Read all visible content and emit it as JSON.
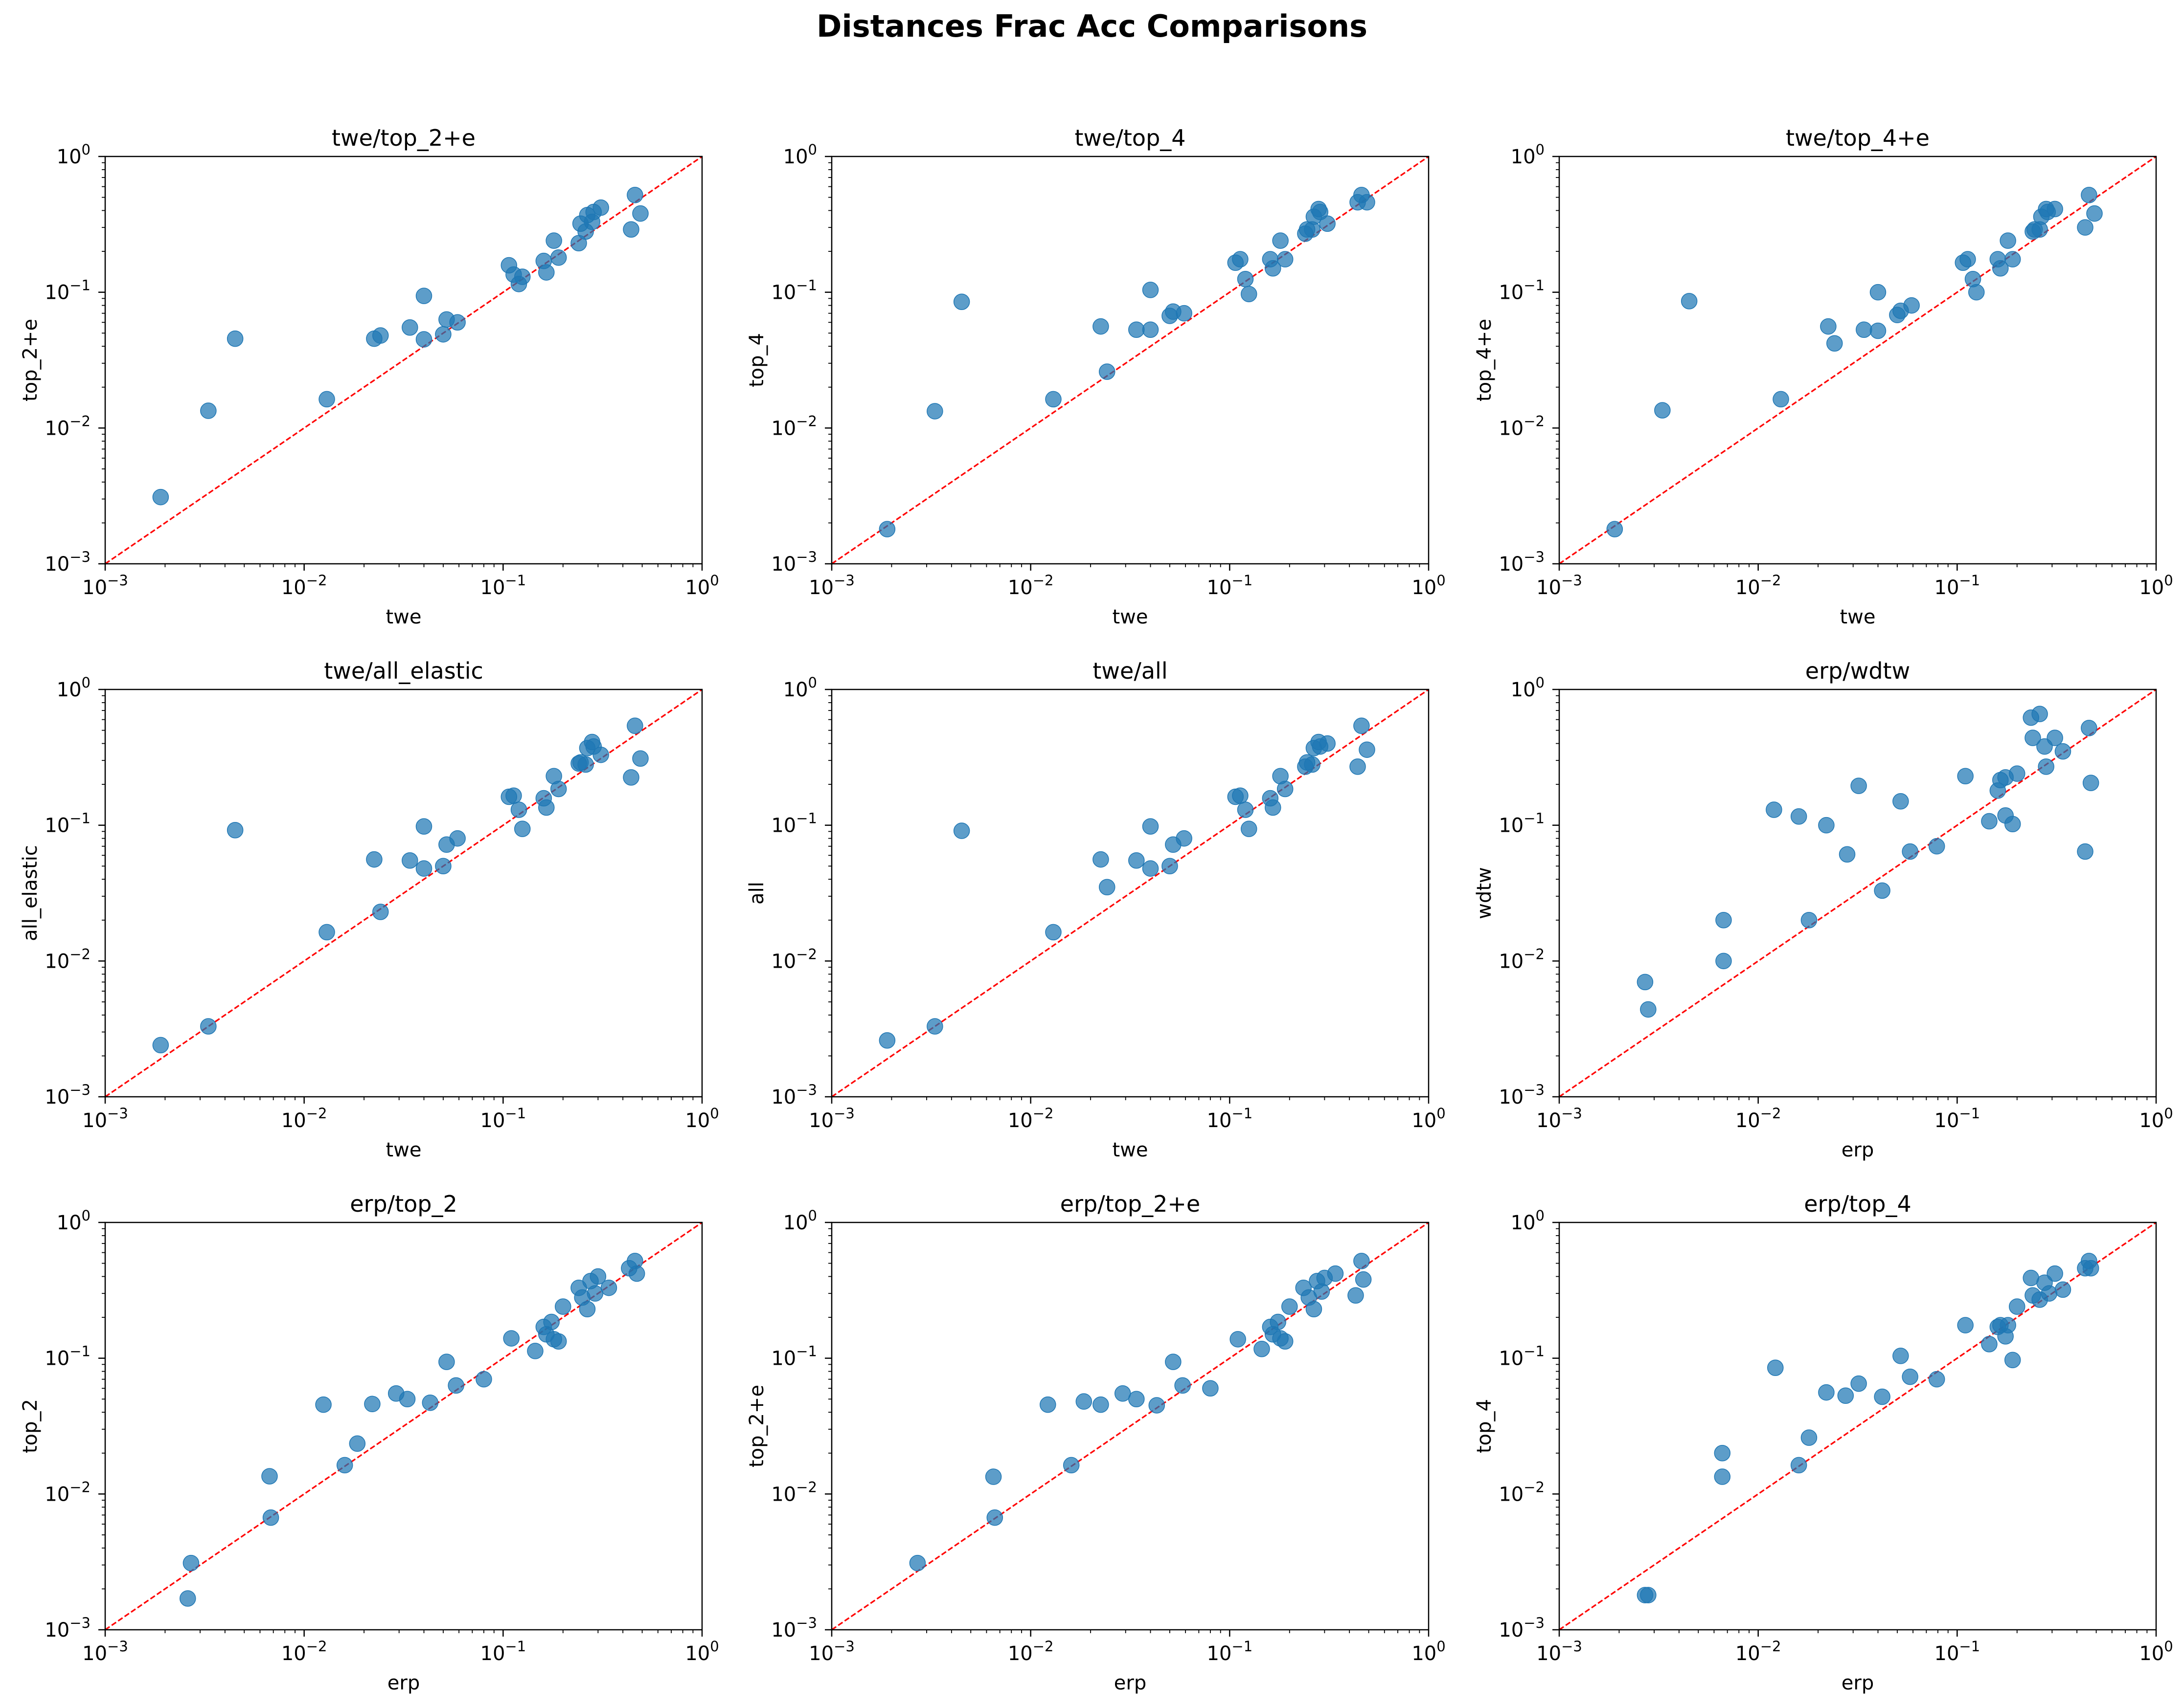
{
  "figure_title": "Distances Frac Acc Comparisons",
  "colors": {
    "point": "#1f77b4",
    "diagonal": "#ff0000",
    "axis": "#000000"
  },
  "tick_labels": [
    "10",
    "10",
    "10",
    "10"
  ],
  "tick_exponents": [
    "−3",
    "−2",
    "−1",
    "0"
  ],
  "chart_data": [
    {
      "type": "scatter",
      "title": "twe/top_2+e",
      "xlabel": "twe",
      "ylabel": "top_2+e",
      "xscale": "log",
      "yscale": "log",
      "xlim": [
        0.001,
        1
      ],
      "ylim": [
        0.001,
        1
      ],
      "reference_line": "y = x",
      "points": [
        [
          0.0019,
          0.0031
        ],
        [
          0.0033,
          0.0134
        ],
        [
          0.0045,
          0.0455
        ],
        [
          0.013,
          0.0163
        ],
        [
          0.0225,
          0.0455
        ],
        [
          0.0242,
          0.048
        ],
        [
          0.034,
          0.055
        ],
        [
          0.04,
          0.045
        ],
        [
          0.04,
          0.094
        ],
        [
          0.05,
          0.049
        ],
        [
          0.052,
          0.063
        ],
        [
          0.059,
          0.06
        ],
        [
          0.107,
          0.158
        ],
        [
          0.113,
          0.135
        ],
        [
          0.12,
          0.115
        ],
        [
          0.125,
          0.13
        ],
        [
          0.16,
          0.17
        ],
        [
          0.165,
          0.14
        ],
        [
          0.18,
          0.24
        ],
        [
          0.19,
          0.18
        ],
        [
          0.24,
          0.23
        ],
        [
          0.245,
          0.32
        ],
        [
          0.26,
          0.28
        ],
        [
          0.265,
          0.37
        ],
        [
          0.28,
          0.33
        ],
        [
          0.285,
          0.39
        ],
        [
          0.31,
          0.42
        ],
        [
          0.44,
          0.29
        ],
        [
          0.46,
          0.52
        ],
        [
          0.49,
          0.38
        ]
      ]
    },
    {
      "type": "scatter",
      "title": "twe/top_4",
      "xlabel": "twe",
      "ylabel": "top_4",
      "xscale": "log",
      "yscale": "log",
      "xlim": [
        0.001,
        1
      ],
      "ylim": [
        0.001,
        1
      ],
      "reference_line": "y = x",
      "points": [
        [
          0.0019,
          0.0018
        ],
        [
          0.0033,
          0.0133
        ],
        [
          0.0045,
          0.085
        ],
        [
          0.013,
          0.0163
        ],
        [
          0.0225,
          0.056
        ],
        [
          0.0242,
          0.026
        ],
        [
          0.034,
          0.053
        ],
        [
          0.04,
          0.104
        ],
        [
          0.04,
          0.053
        ],
        [
          0.05,
          0.067
        ],
        [
          0.052,
          0.072
        ],
        [
          0.059,
          0.07
        ],
        [
          0.107,
          0.165
        ],
        [
          0.113,
          0.175
        ],
        [
          0.12,
          0.125
        ],
        [
          0.125,
          0.097
        ],
        [
          0.16,
          0.175
        ],
        [
          0.165,
          0.15
        ],
        [
          0.18,
          0.24
        ],
        [
          0.19,
          0.175
        ],
        [
          0.24,
          0.27
        ],
        [
          0.245,
          0.29
        ],
        [
          0.26,
          0.29
        ],
        [
          0.265,
          0.36
        ],
        [
          0.28,
          0.41
        ],
        [
          0.285,
          0.39
        ],
        [
          0.31,
          0.32
        ],
        [
          0.44,
          0.46
        ],
        [
          0.46,
          0.52
        ],
        [
          0.49,
          0.46
        ]
      ]
    },
    {
      "type": "scatter",
      "title": "twe/top_4+e",
      "xlabel": "twe",
      "ylabel": "top_4+e",
      "xscale": "log",
      "yscale": "log",
      "xlim": [
        0.001,
        1
      ],
      "ylim": [
        0.001,
        1
      ],
      "reference_line": "y = x",
      "points": [
        [
          0.0019,
          0.0018
        ],
        [
          0.0033,
          0.0135
        ],
        [
          0.0045,
          0.086
        ],
        [
          0.013,
          0.0163
        ],
        [
          0.0225,
          0.056
        ],
        [
          0.0242,
          0.042
        ],
        [
          0.034,
          0.053
        ],
        [
          0.04,
          0.1
        ],
        [
          0.04,
          0.052
        ],
        [
          0.05,
          0.068
        ],
        [
          0.052,
          0.073
        ],
        [
          0.059,
          0.08
        ],
        [
          0.107,
          0.165
        ],
        [
          0.113,
          0.175
        ],
        [
          0.12,
          0.125
        ],
        [
          0.125,
          0.1
        ],
        [
          0.16,
          0.175
        ],
        [
          0.165,
          0.15
        ],
        [
          0.18,
          0.24
        ],
        [
          0.19,
          0.175
        ],
        [
          0.24,
          0.28
        ],
        [
          0.245,
          0.29
        ],
        [
          0.26,
          0.29
        ],
        [
          0.265,
          0.36
        ],
        [
          0.28,
          0.41
        ],
        [
          0.285,
          0.39
        ],
        [
          0.31,
          0.41
        ],
        [
          0.44,
          0.3
        ],
        [
          0.46,
          0.52
        ],
        [
          0.49,
          0.38
        ]
      ]
    },
    {
      "type": "scatter",
      "title": "twe/all_elastic",
      "xlabel": "twe",
      "ylabel": "all_elastic",
      "xscale": "log",
      "yscale": "log",
      "xlim": [
        0.001,
        1
      ],
      "ylim": [
        0.001,
        1
      ],
      "reference_line": "y = x",
      "points": [
        [
          0.0019,
          0.0024
        ],
        [
          0.0033,
          0.0033
        ],
        [
          0.0045,
          0.092
        ],
        [
          0.013,
          0.0163
        ],
        [
          0.0225,
          0.056
        ],
        [
          0.0242,
          0.023
        ],
        [
          0.034,
          0.055
        ],
        [
          0.04,
          0.098
        ],
        [
          0.04,
          0.048
        ],
        [
          0.05,
          0.05
        ],
        [
          0.052,
          0.072
        ],
        [
          0.059,
          0.08
        ],
        [
          0.107,
          0.162
        ],
        [
          0.113,
          0.165
        ],
        [
          0.12,
          0.13
        ],
        [
          0.125,
          0.094
        ],
        [
          0.16,
          0.158
        ],
        [
          0.165,
          0.135
        ],
        [
          0.18,
          0.23
        ],
        [
          0.19,
          0.185
        ],
        [
          0.24,
          0.285
        ],
        [
          0.245,
          0.29
        ],
        [
          0.26,
          0.28
        ],
        [
          0.265,
          0.37
        ],
        [
          0.28,
          0.41
        ],
        [
          0.285,
          0.38
        ],
        [
          0.31,
          0.33
        ],
        [
          0.44,
          0.225
        ],
        [
          0.46,
          0.54
        ],
        [
          0.49,
          0.31
        ]
      ]
    },
    {
      "type": "scatter",
      "title": "twe/all",
      "xlabel": "twe",
      "ylabel": "all",
      "xscale": "log",
      "yscale": "log",
      "xlim": [
        0.001,
        1
      ],
      "ylim": [
        0.001,
        1
      ],
      "reference_line": "y = x",
      "points": [
        [
          0.0019,
          0.0026
        ],
        [
          0.0033,
          0.0033
        ],
        [
          0.0045,
          0.091
        ],
        [
          0.013,
          0.0163
        ],
        [
          0.0225,
          0.056
        ],
        [
          0.0242,
          0.035
        ],
        [
          0.034,
          0.055
        ],
        [
          0.04,
          0.098
        ],
        [
          0.04,
          0.048
        ],
        [
          0.05,
          0.05
        ],
        [
          0.052,
          0.072
        ],
        [
          0.059,
          0.08
        ],
        [
          0.107,
          0.162
        ],
        [
          0.113,
          0.165
        ],
        [
          0.12,
          0.13
        ],
        [
          0.125,
          0.094
        ],
        [
          0.16,
          0.158
        ],
        [
          0.165,
          0.135
        ],
        [
          0.18,
          0.23
        ],
        [
          0.19,
          0.185
        ],
        [
          0.24,
          0.27
        ],
        [
          0.245,
          0.29
        ],
        [
          0.26,
          0.28
        ],
        [
          0.265,
          0.37
        ],
        [
          0.28,
          0.41
        ],
        [
          0.285,
          0.38
        ],
        [
          0.31,
          0.4
        ],
        [
          0.44,
          0.27
        ],
        [
          0.46,
          0.54
        ],
        [
          0.49,
          0.36
        ]
      ]
    },
    {
      "type": "scatter",
      "title": "erp/wdtw",
      "xlabel": "erp",
      "ylabel": "wdtw",
      "xscale": "log",
      "yscale": "log",
      "xlim": [
        0.001,
        1
      ],
      "ylim": [
        0.001,
        1
      ],
      "reference_line": "y = x",
      "points": [
        [
          0.0027,
          0.007
        ],
        [
          0.0028,
          0.0044
        ],
        [
          0.0067,
          0.02
        ],
        [
          0.0067,
          0.01
        ],
        [
          0.012,
          0.13
        ],
        [
          0.016,
          0.116
        ],
        [
          0.018,
          0.02
        ],
        [
          0.022,
          0.1
        ],
        [
          0.028,
          0.061
        ],
        [
          0.032,
          0.195
        ],
        [
          0.042,
          0.033
        ],
        [
          0.052,
          0.15
        ],
        [
          0.058,
          0.064
        ],
        [
          0.079,
          0.07
        ],
        [
          0.11,
          0.23
        ],
        [
          0.145,
          0.107
        ],
        [
          0.16,
          0.18
        ],
        [
          0.165,
          0.215
        ],
        [
          0.175,
          0.118
        ],
        [
          0.175,
          0.225
        ],
        [
          0.19,
          0.102
        ],
        [
          0.2,
          0.24
        ],
        [
          0.235,
          0.62
        ],
        [
          0.24,
          0.44
        ],
        [
          0.26,
          0.66
        ],
        [
          0.275,
          0.38
        ],
        [
          0.28,
          0.27
        ],
        [
          0.31,
          0.44
        ],
        [
          0.34,
          0.35
        ],
        [
          0.44,
          0.064
        ],
        [
          0.46,
          0.52
        ],
        [
          0.47,
          0.205
        ]
      ]
    },
    {
      "type": "scatter",
      "title": "erp/top_2",
      "xlabel": "erp",
      "ylabel": "top_2",
      "xscale": "log",
      "yscale": "log",
      "xlim": [
        0.001,
        1
      ],
      "ylim": [
        0.001,
        1
      ],
      "reference_line": "y = x",
      "points": [
        [
          0.0026,
          0.0017
        ],
        [
          0.0027,
          0.0031
        ],
        [
          0.0067,
          0.0135
        ],
        [
          0.0068,
          0.0067
        ],
        [
          0.0125,
          0.0455
        ],
        [
          0.016,
          0.0163
        ],
        [
          0.0185,
          0.0235
        ],
        [
          0.022,
          0.046
        ],
        [
          0.029,
          0.055
        ],
        [
          0.033,
          0.05
        ],
        [
          0.043,
          0.047
        ],
        [
          0.052,
          0.094
        ],
        [
          0.058,
          0.063
        ],
        [
          0.08,
          0.07
        ],
        [
          0.11,
          0.14
        ],
        [
          0.145,
          0.113
        ],
        [
          0.16,
          0.17
        ],
        [
          0.165,
          0.15
        ],
        [
          0.175,
          0.185
        ],
        [
          0.18,
          0.138
        ],
        [
          0.19,
          0.133
        ],
        [
          0.2,
          0.24
        ],
        [
          0.24,
          0.33
        ],
        [
          0.25,
          0.28
        ],
        [
          0.265,
          0.23
        ],
        [
          0.275,
          0.37
        ],
        [
          0.29,
          0.3
        ],
        [
          0.3,
          0.4
        ],
        [
          0.34,
          0.33
        ],
        [
          0.43,
          0.46
        ],
        [
          0.46,
          0.52
        ],
        [
          0.47,
          0.42
        ]
      ]
    },
    {
      "type": "scatter",
      "title": "erp/top_2+e",
      "xlabel": "erp",
      "ylabel": "top_2+e",
      "xscale": "log",
      "yscale": "log",
      "xlim": [
        0.001,
        1
      ],
      "ylim": [
        0.001,
        1
      ],
      "reference_line": "y = x",
      "points": [
        [
          0.0027,
          0.0031
        ],
        [
          0.0065,
          0.0134
        ],
        [
          0.0066,
          0.0067
        ],
        [
          0.0122,
          0.0455
        ],
        [
          0.016,
          0.0163
        ],
        [
          0.0185,
          0.048
        ],
        [
          0.0225,
          0.0455
        ],
        [
          0.029,
          0.055
        ],
        [
          0.034,
          0.05
        ],
        [
          0.043,
          0.045
        ],
        [
          0.052,
          0.094
        ],
        [
          0.058,
          0.063
        ],
        [
          0.08,
          0.06
        ],
        [
          0.11,
          0.138
        ],
        [
          0.145,
          0.117
        ],
        [
          0.16,
          0.17
        ],
        [
          0.165,
          0.15
        ],
        [
          0.175,
          0.185
        ],
        [
          0.18,
          0.14
        ],
        [
          0.19,
          0.133
        ],
        [
          0.2,
          0.24
        ],
        [
          0.235,
          0.33
        ],
        [
          0.25,
          0.28
        ],
        [
          0.265,
          0.23
        ],
        [
          0.275,
          0.37
        ],
        [
          0.29,
          0.31
        ],
        [
          0.3,
          0.39
        ],
        [
          0.34,
          0.42
        ],
        [
          0.43,
          0.29
        ],
        [
          0.46,
          0.52
        ],
        [
          0.47,
          0.38
        ]
      ]
    },
    {
      "type": "scatter",
      "title": "erp/top_4",
      "xlabel": "erp",
      "ylabel": "top_4",
      "xscale": "log",
      "yscale": "log",
      "xlim": [
        0.001,
        1
      ],
      "ylim": [
        0.001,
        1
      ],
      "reference_line": "y = x",
      "points": [
        [
          0.0027,
          0.0018
        ],
        [
          0.0028,
          0.0018
        ],
        [
          0.0066,
          0.02
        ],
        [
          0.0066,
          0.0134
        ],
        [
          0.0122,
          0.085
        ],
        [
          0.016,
          0.0163
        ],
        [
          0.018,
          0.026
        ],
        [
          0.022,
          0.056
        ],
        [
          0.0275,
          0.053
        ],
        [
          0.032,
          0.065
        ],
        [
          0.042,
          0.052
        ],
        [
          0.052,
          0.104
        ],
        [
          0.058,
          0.073
        ],
        [
          0.079,
          0.07
        ],
        [
          0.11,
          0.175
        ],
        [
          0.145,
          0.127
        ],
        [
          0.16,
          0.17
        ],
        [
          0.165,
          0.175
        ],
        [
          0.175,
          0.145
        ],
        [
          0.18,
          0.175
        ],
        [
          0.19,
          0.097
        ],
        [
          0.2,
          0.24
        ],
        [
          0.235,
          0.39
        ],
        [
          0.24,
          0.29
        ],
        [
          0.26,
          0.27
        ],
        [
          0.275,
          0.36
        ],
        [
          0.29,
          0.3
        ],
        [
          0.31,
          0.42
        ],
        [
          0.34,
          0.32
        ],
        [
          0.44,
          0.46
        ],
        [
          0.46,
          0.52
        ],
        [
          0.47,
          0.46
        ]
      ]
    }
  ]
}
